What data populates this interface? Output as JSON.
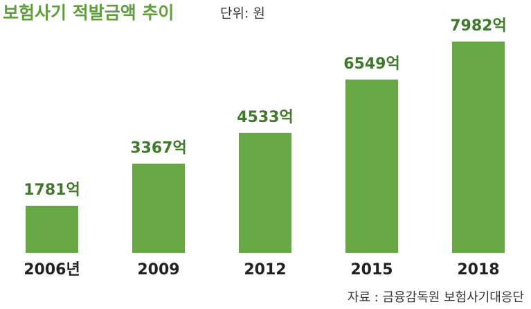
{
  "chart_data": {
    "type": "bar",
    "title": "보험사기 적발금액 추이",
    "subtitle": "단위: 원",
    "categories": [
      "2006년",
      "2009",
      "2012",
      "2015",
      "2018"
    ],
    "values": [
      1781,
      3367,
      4533,
      6549,
      7982
    ],
    "value_labels": [
      "1781억",
      "3367억",
      "4533억",
      "6549억",
      "7982억"
    ],
    "color": "#68a844",
    "source": "자료 : 금융감독원 보험사기대응단"
  }
}
